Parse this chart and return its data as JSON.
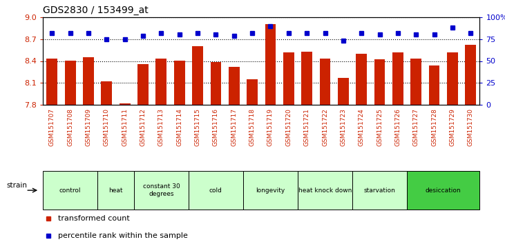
{
  "title": "GDS2830 / 153499_at",
  "samples": [
    "GSM151707",
    "GSM151708",
    "GSM151709",
    "GSM151710",
    "GSM151711",
    "GSM151712",
    "GSM151713",
    "GSM151714",
    "GSM151715",
    "GSM151716",
    "GSM151717",
    "GSM151718",
    "GSM151719",
    "GSM151720",
    "GSM151721",
    "GSM151722",
    "GSM151723",
    "GSM151724",
    "GSM151725",
    "GSM151726",
    "GSM151727",
    "GSM151728",
    "GSM151729",
    "GSM151730"
  ],
  "bar_values": [
    8.43,
    8.4,
    8.45,
    8.12,
    7.82,
    8.36,
    8.43,
    8.4,
    8.6,
    8.39,
    8.32,
    8.15,
    8.9,
    8.52,
    8.53,
    8.43,
    8.17,
    8.5,
    8.42,
    8.52,
    8.43,
    8.34,
    8.52,
    8.62
  ],
  "percentile_values": [
    82,
    82,
    82,
    75,
    75,
    79,
    82,
    80,
    82,
    80,
    79,
    82,
    90,
    82,
    82,
    82,
    73,
    82,
    80,
    82,
    80,
    80,
    88,
    82
  ],
  "bar_color": "#cc2200",
  "dot_color": "#0000cc",
  "ymin": 7.8,
  "ymax": 9.0,
  "yticks": [
    7.8,
    8.1,
    8.4,
    8.7,
    9.0
  ],
  "right_yticks": [
    0,
    25,
    50,
    75,
    100
  ],
  "right_ylabels": [
    "0",
    "25",
    "50",
    "75",
    "100%"
  ],
  "groups": [
    {
      "label": "control",
      "start": 0,
      "end": 2,
      "color": "#ccffcc"
    },
    {
      "label": "heat",
      "start": 3,
      "end": 4,
      "color": "#ccffcc"
    },
    {
      "label": "constant 30\ndegrees",
      "start": 5,
      "end": 7,
      "color": "#ccffcc"
    },
    {
      "label": "cold",
      "start": 8,
      "end": 10,
      "color": "#ccffcc"
    },
    {
      "label": "longevity",
      "start": 11,
      "end": 13,
      "color": "#ccffcc"
    },
    {
      "label": "heat knock down",
      "start": 14,
      "end": 16,
      "color": "#ccffcc"
    },
    {
      "label": "starvation",
      "start": 17,
      "end": 19,
      "color": "#ccffcc"
    },
    {
      "label": "desiccation",
      "start": 20,
      "end": 23,
      "color": "#44cc44"
    }
  ],
  "legend_items": [
    {
      "label": "transformed count",
      "color": "#cc2200"
    },
    {
      "label": "percentile rank within the sample",
      "color": "#0000cc"
    }
  ],
  "bg_color": "#ffffff",
  "tick_label_color": "#cc2200",
  "right_tick_color": "#0000cc",
  "xtick_bg_color": "#d0d0d0",
  "group_border_color": "#000000"
}
